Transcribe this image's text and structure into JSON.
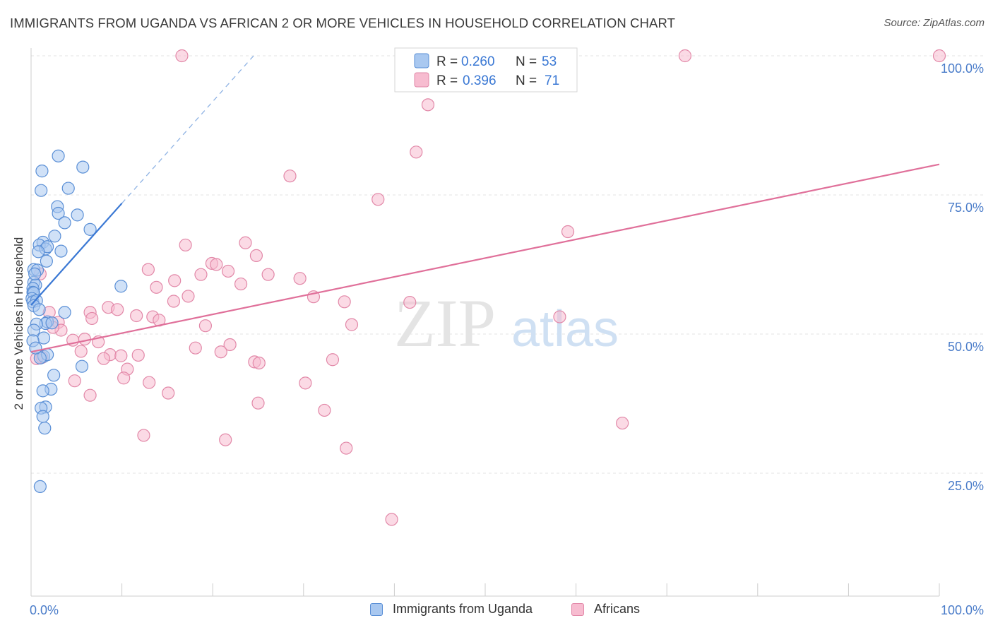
{
  "title": "IMMIGRANTS FROM UGANDA VS AFRICAN 2 OR MORE VEHICLES IN HOUSEHOLD CORRELATION CHART",
  "source": "Source: ZipAtlas.com",
  "watermark": {
    "zip": "ZIP",
    "atlas": "atlas"
  },
  "legend": {
    "items": [
      {
        "r_label": "R =",
        "r_value": "0.260",
        "n_label": "N =",
        "n_value": "53"
      },
      {
        "r_label": "R =",
        "r_value": "0.396",
        "n_label": "N =",
        "n_value": "71"
      }
    ]
  },
  "bottom_legend": [
    "Immigrants from Uganda",
    "Africans"
  ],
  "colors": {
    "blue_fill": "#a9c8f0",
    "blue_stroke": "#5a8fd6",
    "blue_line": "#3a78d4",
    "pink_fill": "#f7bcd0",
    "pink_stroke": "#e288a8",
    "pink_line": "#e0709a",
    "tick_label": "#4a7cc9",
    "grid": "#e3e3e3"
  },
  "chart_data": {
    "type": "scatter",
    "title": "IMMIGRANTS FROM UGANDA VS AFRICAN 2 OR MORE VEHICLES IN HOUSEHOLD CORRELATION CHART",
    "xlabel": "",
    "ylabel": "2 or more Vehicles in Household",
    "xlim": [
      0,
      100
    ],
    "ylim": [
      0,
      105
    ],
    "x_tick_labels": [
      "0.0%",
      "100.0%"
    ],
    "y_ticks": [
      25,
      50,
      75,
      100
    ],
    "y_tick_labels": [
      "25.0%",
      "50.0%",
      "75.0%",
      "100.0%"
    ],
    "grid": true,
    "legend_position": "top-center",
    "series": [
      {
        "name": "Immigrants from Uganda",
        "R": 0.26,
        "N": 53,
        "trend": {
          "x0": 0,
          "y0": 55.2,
          "x1": 10,
          "y1": 73.5,
          "dashed_to_x": 24.5,
          "dashed_to_y": 100
        },
        "points": [
          [
            3.0,
            82.0
          ],
          [
            1.2,
            79.3
          ],
          [
            5.7,
            80.0
          ],
          [
            1.1,
            75.8
          ],
          [
            4.1,
            76.2
          ],
          [
            2.9,
            72.9
          ],
          [
            3.0,
            71.7
          ],
          [
            5.1,
            71.4
          ],
          [
            3.7,
            70.0
          ],
          [
            6.5,
            68.8
          ],
          [
            2.6,
            67.6
          ],
          [
            1.3,
            66.5
          ],
          [
            0.9,
            66.0
          ],
          [
            1.6,
            65.3
          ],
          [
            1.8,
            65.7
          ],
          [
            0.8,
            64.8
          ],
          [
            3.3,
            64.9
          ],
          [
            1.7,
            63.1
          ],
          [
            0.3,
            61.6
          ],
          [
            0.7,
            61.5
          ],
          [
            0.3,
            59.3
          ],
          [
            0.5,
            58.8
          ],
          [
            0.2,
            58.2
          ],
          [
            0.2,
            57.5
          ],
          [
            0.3,
            57.4
          ],
          [
            9.9,
            58.6
          ],
          [
            0.1,
            56.4
          ],
          [
            0.2,
            55.8
          ],
          [
            0.6,
            56.0
          ],
          [
            0.3,
            55.1
          ],
          [
            3.7,
            53.9
          ],
          [
            1.8,
            52.2
          ],
          [
            1.6,
            51.9
          ],
          [
            0.6,
            51.8
          ],
          [
            0.3,
            50.7
          ],
          [
            1.4,
            49.3
          ],
          [
            0.2,
            48.8
          ],
          [
            1.4,
            46.0
          ],
          [
            1.8,
            46.3
          ],
          [
            1.0,
            45.7
          ],
          [
            5.6,
            44.2
          ],
          [
            2.5,
            42.6
          ],
          [
            2.2,
            40.1
          ],
          [
            1.3,
            39.8
          ],
          [
            1.6,
            36.9
          ],
          [
            1.1,
            36.7
          ],
          [
            1.3,
            35.2
          ],
          [
            1.5,
            33.1
          ],
          [
            1.0,
            22.6
          ],
          [
            0.5,
            47.5
          ],
          [
            0.9,
            54.4
          ],
          [
            2.3,
            52.0
          ],
          [
            0.4,
            60.8
          ]
        ]
      },
      {
        "name": "Africans",
        "R": 0.396,
        "N": 71,
        "trend": {
          "x0": 0,
          "y0": 46.8,
          "x1": 100,
          "y1": 80.5
        },
        "points": [
          [
            16.6,
            100.0
          ],
          [
            72.0,
            100.0
          ],
          [
            100.0,
            100.0
          ],
          [
            43.7,
            91.2
          ],
          [
            42.4,
            82.7
          ],
          [
            28.5,
            78.4
          ],
          [
            38.2,
            74.2
          ],
          [
            59.1,
            68.4
          ],
          [
            23.6,
            66.4
          ],
          [
            17.0,
            66.0
          ],
          [
            24.8,
            64.1
          ],
          [
            19.9,
            62.7
          ],
          [
            20.4,
            62.5
          ],
          [
            21.7,
            61.3
          ],
          [
            12.9,
            61.6
          ],
          [
            18.7,
            60.7
          ],
          [
            15.8,
            59.6
          ],
          [
            26.1,
            60.7
          ],
          [
            29.6,
            60.0
          ],
          [
            23.1,
            59.0
          ],
          [
            13.8,
            58.4
          ],
          [
            17.3,
            56.8
          ],
          [
            15.7,
            55.9
          ],
          [
            31.1,
            56.7
          ],
          [
            34.5,
            55.8
          ],
          [
            41.7,
            55.7
          ],
          [
            8.5,
            54.8
          ],
          [
            9.5,
            54.4
          ],
          [
            6.5,
            53.9
          ],
          [
            2.0,
            53.9
          ],
          [
            13.4,
            53.1
          ],
          [
            11.6,
            53.3
          ],
          [
            14.1,
            52.5
          ],
          [
            6.7,
            52.8
          ],
          [
            3.0,
            52.1
          ],
          [
            35.3,
            51.7
          ],
          [
            19.2,
            51.5
          ],
          [
            3.3,
            50.7
          ],
          [
            4.6,
            48.9
          ],
          [
            7.4,
            48.6
          ],
          [
            5.9,
            49.1
          ],
          [
            21.9,
            48.1
          ],
          [
            18.1,
            47.5
          ],
          [
            20.9,
            46.8
          ],
          [
            5.5,
            46.9
          ],
          [
            8.7,
            46.3
          ],
          [
            11.8,
            46.2
          ],
          [
            9.9,
            46.1
          ],
          [
            1.2,
            45.8
          ],
          [
            8.0,
            45.6
          ],
          [
            24.6,
            45.0
          ],
          [
            25.1,
            44.8
          ],
          [
            33.2,
            45.4
          ],
          [
            10.6,
            43.7
          ],
          [
            10.2,
            42.1
          ],
          [
            4.8,
            41.6
          ],
          [
            13.0,
            41.3
          ],
          [
            30.2,
            41.2
          ],
          [
            6.5,
            39.0
          ],
          [
            15.1,
            39.4
          ],
          [
            25.0,
            37.6
          ],
          [
            32.3,
            36.3
          ],
          [
            65.1,
            34.0
          ],
          [
            12.4,
            31.8
          ],
          [
            21.4,
            31.0
          ],
          [
            34.7,
            29.5
          ],
          [
            39.7,
            16.7
          ],
          [
            58.2,
            53.1
          ],
          [
            1.0,
            60.8
          ],
          [
            0.6,
            45.6
          ],
          [
            2.4,
            51.2
          ]
        ]
      }
    ]
  }
}
